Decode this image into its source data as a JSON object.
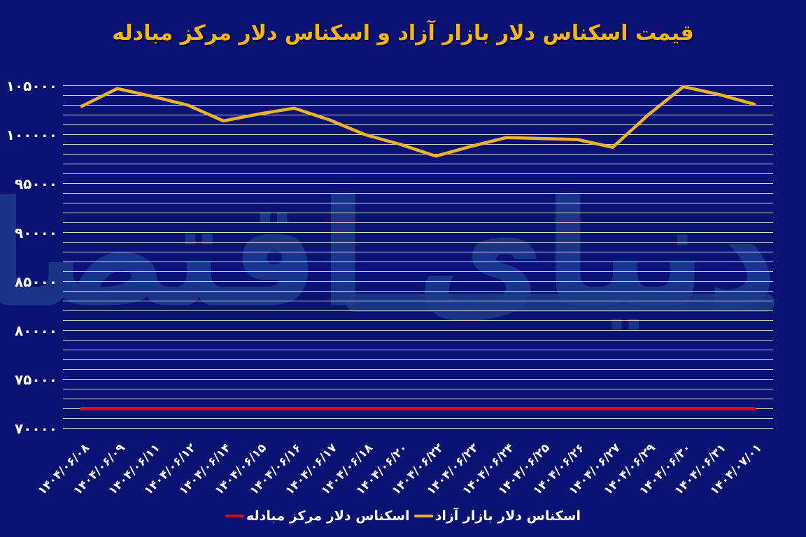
{
  "title": "قیمت اسکناس دلار بازار آزاد و اسکناس دلار مرکز مبادله",
  "watermark": "دنیای اقتصاد",
  "colors": {
    "background": "#0A1272",
    "title": "#FBB512",
    "gridline": "#E2E2F2",
    "axis_text": "#FFFFFF",
    "watermark": "#1D3C8B",
    "free_market_line": "#ECB22C",
    "exchange_center_line": "#E00B08"
  },
  "legend": [
    {
      "label": "اسکناس دلار بازار آزاد",
      "color": "#ECB22C"
    },
    {
      "label": "اسکناس دلار مرکز مبادله",
      "color": "#E00B08"
    }
  ],
  "chart_data": {
    "type": "line",
    "title": "قیمت اسکناس دلار بازار آزاد و اسکناس دلار مرکز مبادله",
    "xlabel": "",
    "ylabel": "",
    "grid": true,
    "legend_position": "bottom",
    "x_tick_rotation": 45,
    "ylim": [
      70000,
      105000
    ],
    "minor_grid_step": 1000,
    "y_ticks": [
      {
        "value": 105000,
        "label": "۱۰۵۰۰۰"
      },
      {
        "value": 100000,
        "label": "۱۰۰۰۰۰"
      },
      {
        "value": 95000,
        "label": "۹۵۰۰۰"
      },
      {
        "value": 90000,
        "label": "۹۰۰۰۰"
      },
      {
        "value": 85000,
        "label": "۸۵۰۰۰"
      },
      {
        "value": 80000,
        "label": "۸۰۰۰۰"
      },
      {
        "value": 75000,
        "label": "۷۵۰۰۰"
      },
      {
        "value": 70000,
        "label": "۷۰۰۰۰"
      }
    ],
    "categories": [
      "۱۴۰۴/۰۶/۰۸",
      "۱۴۰۴/۰۶/۰۹",
      "۱۴۰۴/۰۶/۱۱",
      "۱۴۰۴/۰۶/۱۲",
      "۱۴۰۴/۰۶/۱۴",
      "۱۴۰۴/۰۶/۱۵",
      "۱۴۰۴/۰۶/۱۶",
      "۱۴۰۴/۰۶/۱۷",
      "۱۴۰۴/۰۶/۱۸",
      "۱۴۰۴/۰۶/۲۰",
      "۱۴۰۴/۰۶/۲۲",
      "۱۴۰۴/۰۶/۲۳",
      "۱۴۰۴/۰۶/۲۴",
      "۱۴۰۴/۰۶/۲۵",
      "۱۴۰۴/۰۶/۲۶",
      "۱۴۰۴/۰۶/۲۷",
      "۱۴۰۴/۰۶/۲۹",
      "۱۴۰۴/۰۶/۳۰",
      "۱۴۰۴/۰۶/۳۱",
      "۱۴۰۴/۰۷/۰۱"
    ],
    "series": [
      {
        "name": "اسکناس دلار بازار آزاد",
        "color": "#ECB22C",
        "width": 4.5,
        "values": [
          102900,
          104700,
          103900,
          103000,
          101400,
          102100,
          102700,
          101500,
          100000,
          99000,
          97800,
          98800,
          99700,
          99600,
          99500,
          98700,
          102000,
          104900,
          104100,
          103100
        ]
      },
      {
        "name": "اسکناس دلار مرکز مبادله",
        "color": "#E00B08",
        "width": 5,
        "values": [
          72000,
          72000,
          72000,
          72000,
          72000,
          72000,
          72000,
          72000,
          72000,
          72000,
          72000,
          72000,
          72000,
          72000,
          72000,
          72000,
          72000,
          72000,
          72000,
          72000
        ]
      }
    ]
  }
}
